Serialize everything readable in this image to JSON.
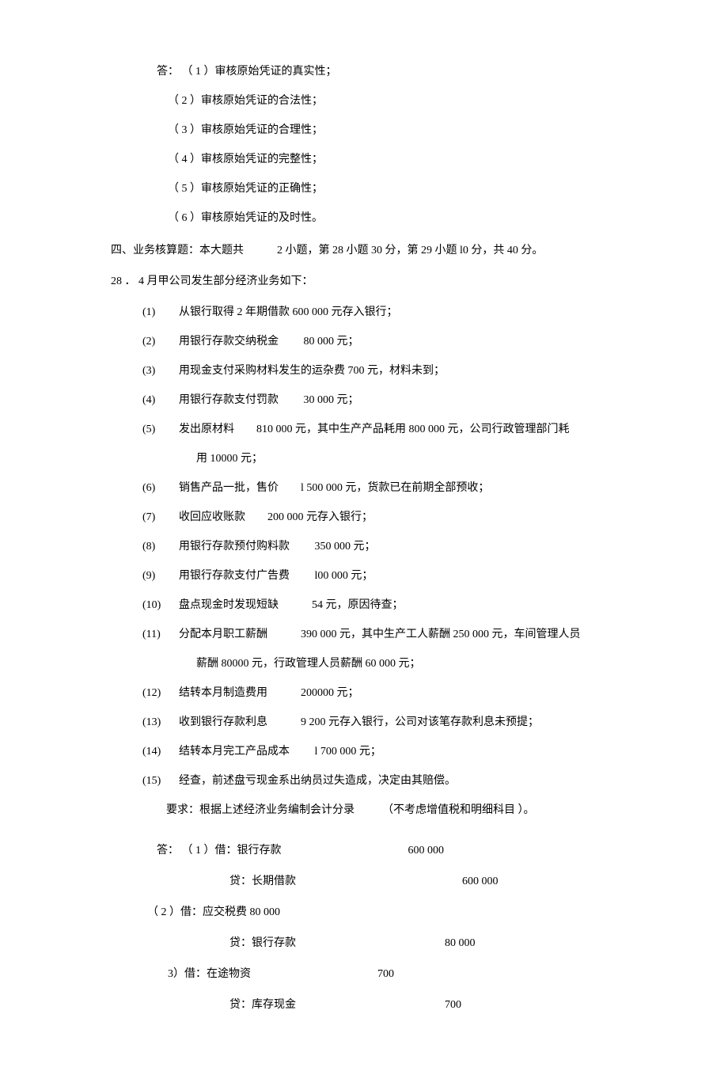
{
  "answers_top": {
    "prefix": "答：",
    "items": [
      "（ 1 ）审核原始凭证的真实性；",
      "（ 2 ）审核原始凭证的合法性；",
      "（ 3 ）审核原始凭证的合理性；",
      "（ 4 ）审核原始凭证的完整性；",
      "（ 5 ）审核原始凭证的正确性；",
      "（ 6 ）审核原始凭证的及时性。"
    ]
  },
  "section4": {
    "heading": "四、业务核算题：本大题共　　　2 小题，第 28 小题 30 分，第 29 小题 l0 分，共 40 分。"
  },
  "q28": {
    "title": "28 ．  4 月甲公司发生部分经济业务如下：",
    "items": [
      {
        "num": "(1)",
        "text": "从银行取得 2 年期借款 600 000 元存入银行；"
      },
      {
        "num": "(2)",
        "text": "用银行存款交纳税金　　 80 000 元；"
      },
      {
        "num": "(3)",
        "text": "用现金支付采购材料发生的运杂费 700 元，材料未到；"
      },
      {
        "num": "(4)",
        "text": "用银行存款支付罚款　　 30 000 元；"
      },
      {
        "num": "(5)",
        "text": "发出原材料　　810 000 元，其中生产产品耗用 800 000 元，公司行政管理部门耗",
        "cont": "用 10000 元；"
      },
      {
        "num": "(6)",
        "text": "销售产品一批，售价　　l 500 000 元，货款已在前期全部预收；"
      },
      {
        "num": "(7)",
        "text": "收回应收账款　　200 000 元存入银行；"
      },
      {
        "num": "(8)",
        "text": "用银行存款预付购料款　　 350 000 元；"
      },
      {
        "num": "(9)",
        "text": "用银行存款支付广告费　　 l00 000 元；"
      },
      {
        "num": "(10)",
        "text": "盘点现金时发现短缺　　　54 元，原因待查；"
      },
      {
        "num": "(11)",
        "text": "分配本月职工薪酬　　　390 000 元，其中生产工人薪酬 250 000 元，车间管理人员",
        "cont": "薪酬 80000 元，行政管理人员薪酬 60 000 元；"
      },
      {
        "num": "(12)",
        "text": "结转本月制造费用　　　200000 元；"
      },
      {
        "num": "(13)",
        "text": "收到银行存款利息　　　9 200 元存入银行，公司对该笔存款利息未预提；"
      },
      {
        "num": "(14)",
        "text": "结转本月完工产品成本　　 l 700 000 元；"
      },
      {
        "num": "(15)",
        "text": "经查，前述盘亏现金系出纳员过失造成，决定由其赔偿。"
      }
    ],
    "requirement": "要求：根据上述经济业务编制会计分录　　　（不考虑增值税和明细科目 ）。"
  },
  "entries": {
    "prefix": "答：",
    "e1": {
      "debit_label": "（ 1 ）借：银行存款",
      "debit_amount": "600 000",
      "credit_label": "贷：长期借款",
      "credit_amount": "600 000"
    },
    "e2": {
      "debit_label": "（ 2 ）借：应交税费 80 000",
      "credit_label": "贷：银行存款",
      "credit_amount": "80 000"
    },
    "e3": {
      "debit_label": "3）借：在途物资",
      "debit_amount": "700",
      "credit_label": "贷：库存现金",
      "credit_amount": "700"
    }
  }
}
